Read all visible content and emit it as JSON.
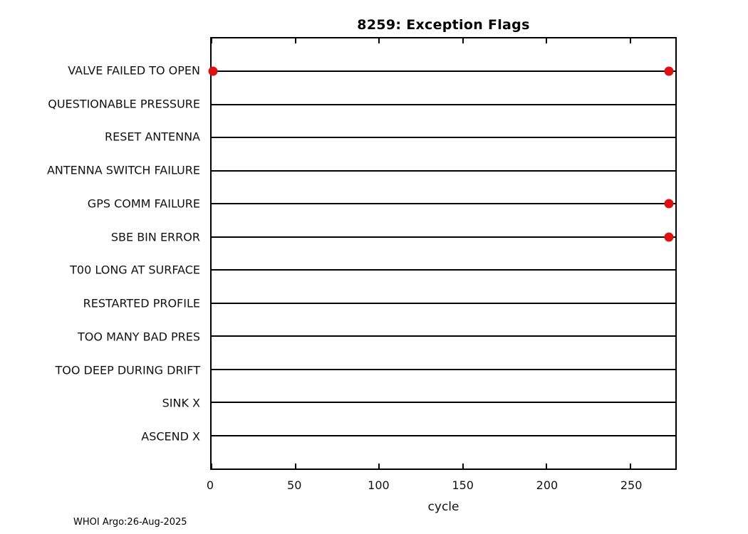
{
  "figure": {
    "footer": "WHOI Argo:26-Aug-2025"
  },
  "chart_data": {
    "type": "scatter",
    "title": "8259: Exception Flags",
    "xlabel": "cycle",
    "ylabel": "",
    "xlim": [
      0,
      277
    ],
    "xticks": [
      0,
      50,
      100,
      150,
      200,
      250
    ],
    "grid": "horizontal category lines, full width",
    "legend": "none",
    "line_color": "#000000",
    "marker_color": "#dd1111",
    "background": "#ffffff",
    "categories": [
      "VALVE FAILED TO OPEN",
      "QUESTIONABLE PRESSURE",
      "RESET ANTENNA",
      "ANTENNA SWITCH FAILURE",
      "GPS COMM FAILURE",
      "SBE BIN ERROR",
      "T00 LONG AT SURFACE",
      "RESTARTED PROFILE",
      "TOO MANY BAD PRES",
      "TOO DEEP DURING DRIFT",
      "SINK X",
      "ASCEND X"
    ],
    "points": [
      {
        "category": "VALVE FAILED TO OPEN",
        "cycles": [
          1,
          273
        ]
      },
      {
        "category": "GPS COMM FAILURE",
        "cycles": [
          273
        ]
      },
      {
        "category": "SBE BIN ERROR",
        "cycles": [
          273
        ]
      }
    ]
  }
}
